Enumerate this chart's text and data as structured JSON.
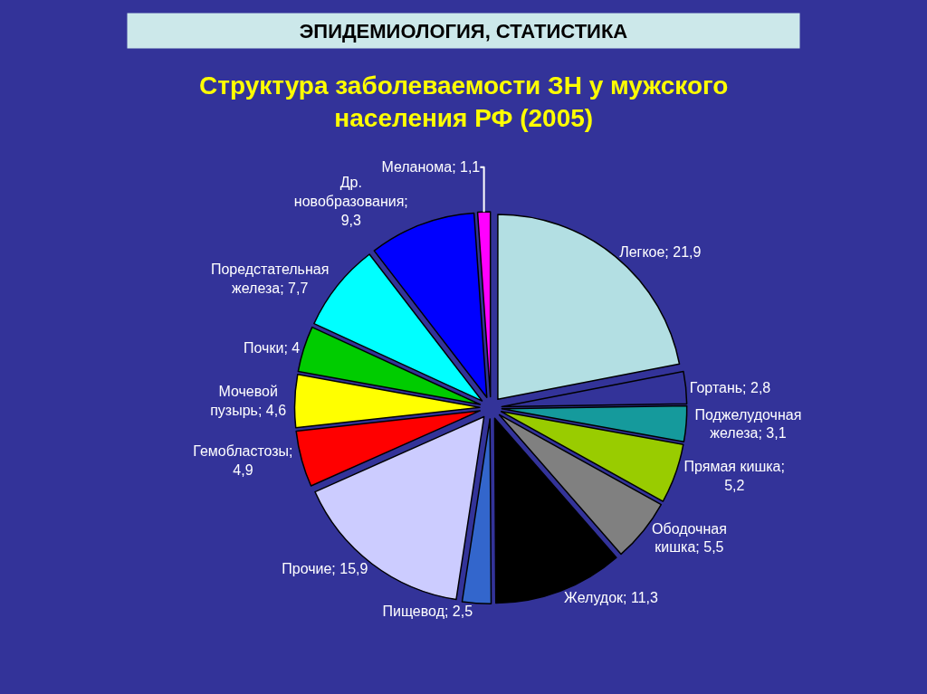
{
  "chart_data": {
    "type": "pie",
    "title": "ЭПИДЕМИОЛОГИЯ, СТАТИСТИКА",
    "subtitle": "Структура заболеваемости ЗН у мужского населения РФ (2005)",
    "categories": [
      "Легкое; 21,9",
      "Гортань; 2,8",
      "Поджелудочная железа; 3,1",
      "Прямая кишка; 5,2",
      "Ободочная кишка; 5,5",
      "Желудок; 11,3",
      "Пищевод; 2,5",
      "Прочие; 15,9",
      "Гемобластозы; 4,9",
      "Мочевой пузырь; 4,6",
      "Почки; 4",
      "Поредстательная железа; 7,7",
      "Др. новобразования; 9,3",
      "Меланома; 1,1"
    ],
    "values": [
      21.9,
      2.8,
      3.1,
      5.2,
      5.5,
      11.3,
      2.5,
      15.9,
      4.9,
      4.6,
      4,
      7.7,
      9.3,
      1.1
    ],
    "colors": [
      "#b3dfe3",
      "#333399",
      "#159a9c",
      "#99cc00",
      "#808080",
      "#000000",
      "#3366cc",
      "#ccccff",
      "#ff0000",
      "#ffff00",
      "#00cc00",
      "#00ffff",
      "#0000ff",
      "#ff00ff"
    ],
    "legend": false
  }
}
